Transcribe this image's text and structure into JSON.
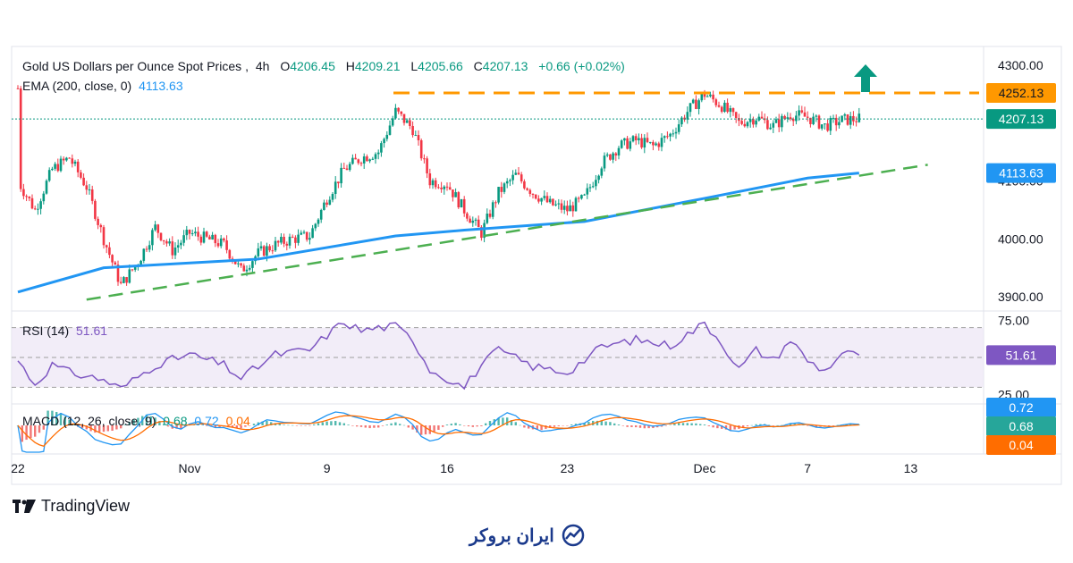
{
  "header": {
    "symbol": "Gold US Dollars per Ounce Spot Prices",
    "timeframe": "4h",
    "o_label": "O",
    "o_value": "4206.45",
    "h_label": "H",
    "h_value": "4209.21",
    "l_label": "L",
    "l_value": "4205.66",
    "c_label": "C",
    "c_value": "4207.13",
    "change": "+0.66 (+0.02%)",
    "ema_label": "EMA (200, close, 0)",
    "ema_value": "4113.63",
    "rsi_label": "RSI (14)",
    "rsi_value": "51.61",
    "macd_label": "MACD (12, 26, close, 9)",
    "macd_v1": "0.68",
    "macd_v2": "0.72",
    "macd_v3": "0.04"
  },
  "footer": {
    "tradingview": "TradingView",
    "brand": "ایران بروکر"
  },
  "colors": {
    "up": "#089981",
    "down": "#f23645",
    "ema": "#2196f3",
    "rsi": "#7e57c2",
    "resistance": "#ff9800",
    "support": "#4caf50",
    "macd_signal": "#ff6d00"
  },
  "chart_data": [
    {
      "type": "candlestick",
      "title": "Gold US Dollars per Ounce Spot Prices, 4h",
      "x_tick_labels": [
        "22",
        "Nov",
        "9",
        "16",
        "23",
        "Dec",
        "7",
        "13"
      ],
      "y_tick_labels": [
        "3900.00",
        "4000.00",
        "4100.00",
        "4300.00"
      ],
      "ylim": [
        3880,
        4320
      ],
      "price_labels": [
        {
          "name": "resistance",
          "value": 4252.13,
          "text": "4252.13",
          "color": "#ff9800"
        },
        {
          "name": "last",
          "value": 4207.13,
          "text": "4207.13",
          "color": "#089981"
        },
        {
          "name": "ema",
          "value": 4113.63,
          "text": "4113.63",
          "color": "#2196f3"
        }
      ],
      "resistance_level": 4252.13,
      "ema200": [
        {
          "x": "Oct 22",
          "y": 3908
        },
        {
          "x": "Oct 27",
          "y": 3950
        },
        {
          "x": "Nov 5",
          "y": 3965
        },
        {
          "x": "Nov 13",
          "y": 4005
        },
        {
          "x": "Nov 17",
          "y": 4015
        },
        {
          "x": "Nov 24",
          "y": 4030
        },
        {
          "x": "Dec 1",
          "y": 4070
        },
        {
          "x": "Dec 7",
          "y": 4105
        },
        {
          "x": "Dec 10",
          "y": 4113.63
        }
      ],
      "support_trendline": [
        {
          "x": "Oct 26",
          "y": 3895
        },
        {
          "x": "Dec 14",
          "y": 4128
        }
      ],
      "price_path": [
        {
          "x": "Oct 22",
          "y": 4260
        },
        {
          "x": "Oct 22",
          "y": 4100
        },
        {
          "x": "Oct 23",
          "y": 4050
        },
        {
          "x": "Oct 24",
          "y": 4120
        },
        {
          "x": "Oct 25",
          "y": 4140
        },
        {
          "x": "Oct 26",
          "y": 4090
        },
        {
          "x": "Oct 27",
          "y": 4000
        },
        {
          "x": "Oct 28",
          "y": 3920
        },
        {
          "x": "Oct 29",
          "y": 3960
        },
        {
          "x": "Oct 30",
          "y": 4020
        },
        {
          "x": "Oct 31",
          "y": 3980
        },
        {
          "x": "Nov 1",
          "y": 4010
        },
        {
          "x": "Nov 2",
          "y": 4000
        },
        {
          "x": "Nov 3",
          "y": 3990
        },
        {
          "x": "Nov 4",
          "y": 3945
        },
        {
          "x": "Nov 5",
          "y": 3975
        },
        {
          "x": "Nov 6",
          "y": 3990
        },
        {
          "x": "Nov 7",
          "y": 4000
        },
        {
          "x": "Nov 8",
          "y": 4005
        },
        {
          "x": "Nov 9",
          "y": 4070
        },
        {
          "x": "Nov 10",
          "y": 4120
        },
        {
          "x": "Nov 11",
          "y": 4140
        },
        {
          "x": "Nov 12",
          "y": 4150
        },
        {
          "x": "Nov 13",
          "y": 4220
        },
        {
          "x": "Nov 14",
          "y": 4190
        },
        {
          "x": "Nov 15",
          "y": 4100
        },
        {
          "x": "Nov 16",
          "y": 4095
        },
        {
          "x": "Nov 17",
          "y": 4050
        },
        {
          "x": "Nov 18",
          "y": 4010
        },
        {
          "x": "Nov 19",
          "y": 4080
        },
        {
          "x": "Nov 20",
          "y": 4110
        },
        {
          "x": "Nov 21",
          "y": 4080
        },
        {
          "x": "Nov 22",
          "y": 4060
        },
        {
          "x": "Nov 23",
          "y": 4050
        },
        {
          "x": "Nov 24",
          "y": 4070
        },
        {
          "x": "Nov 25",
          "y": 4130
        },
        {
          "x": "Nov 26",
          "y": 4160
        },
        {
          "x": "Nov 27",
          "y": 4170
        },
        {
          "x": "Nov 28",
          "y": 4160
        },
        {
          "x": "Nov 29",
          "y": 4180
        },
        {
          "x": "Nov 30",
          "y": 4220
        },
        {
          "x": "Dec 1",
          "y": 4250
        },
        {
          "x": "Dec 2",
          "y": 4230
        },
        {
          "x": "Dec 3",
          "y": 4200
        },
        {
          "x": "Dec 4",
          "y": 4210
        },
        {
          "x": "Dec 5",
          "y": 4195
        },
        {
          "x": "Dec 6",
          "y": 4215
        },
        {
          "x": "Dec 7",
          "y": 4210
        },
        {
          "x": "Dec 8",
          "y": 4195
        },
        {
          "x": "Dec 9",
          "y": 4205
        },
        {
          "x": "Dec 10",
          "y": 4207.13
        }
      ]
    },
    {
      "type": "line",
      "name": "RSI (14)",
      "y_tick_labels": [
        "75.00",
        "25.00"
      ],
      "ylim": [
        20,
        80
      ],
      "band": [
        30,
        70
      ],
      "midline": 50,
      "last_value": 51.61,
      "values": [
        {
          "x": "Oct 22",
          "y": 48
        },
        {
          "x": "Oct 23",
          "y": 32
        },
        {
          "x": "Oct 24",
          "y": 45
        },
        {
          "x": "Oct 25",
          "y": 40
        },
        {
          "x": "Oct 27",
          "y": 35
        },
        {
          "x": "Oct 28",
          "y": 29
        },
        {
          "x": "Oct 30",
          "y": 45
        },
        {
          "x": "Nov 1",
          "y": 52
        },
        {
          "x": "Nov 3",
          "y": 45
        },
        {
          "x": "Nov 4",
          "y": 36
        },
        {
          "x": "Nov 6",
          "y": 52
        },
        {
          "x": "Nov 8",
          "y": 55
        },
        {
          "x": "Nov 9",
          "y": 65
        },
        {
          "x": "Nov 10",
          "y": 74
        },
        {
          "x": "Nov 11",
          "y": 68
        },
        {
          "x": "Nov 12",
          "y": 70
        },
        {
          "x": "Nov 13",
          "y": 71
        },
        {
          "x": "Nov 14",
          "y": 62
        },
        {
          "x": "Nov 15",
          "y": 42
        },
        {
          "x": "Nov 17",
          "y": 30
        },
        {
          "x": "Nov 18",
          "y": 45
        },
        {
          "x": "Nov 19",
          "y": 55
        },
        {
          "x": "Nov 21",
          "y": 44
        },
        {
          "x": "Nov 23",
          "y": 40
        },
        {
          "x": "Nov 25",
          "y": 57
        },
        {
          "x": "Nov 27",
          "y": 62
        },
        {
          "x": "Nov 29",
          "y": 58
        },
        {
          "x": "Dec 1",
          "y": 73
        },
        {
          "x": "Dec 2",
          "y": 60
        },
        {
          "x": "Dec 3",
          "y": 42
        },
        {
          "x": "Dec 4",
          "y": 55
        },
        {
          "x": "Dec 5",
          "y": 48
        },
        {
          "x": "Dec 6",
          "y": 62
        },
        {
          "x": "Dec 7",
          "y": 48
        },
        {
          "x": "Dec 8",
          "y": 41
        },
        {
          "x": "Dec 9",
          "y": 53
        },
        {
          "x": "Dec 10",
          "y": 51.61
        }
      ]
    },
    {
      "type": "bar",
      "name": "MACD (12, 26, close, 9)",
      "values_shown": {
        "histogram": 0.04,
        "macd": 0.68,
        "signal": 0.72
      },
      "series": [
        {
          "name": "MACD",
          "color": "#2196f3"
        },
        {
          "name": "Signal",
          "color": "#ff6d00"
        },
        {
          "name": "Histogram",
          "color": "#26a69a"
        }
      ]
    }
  ]
}
